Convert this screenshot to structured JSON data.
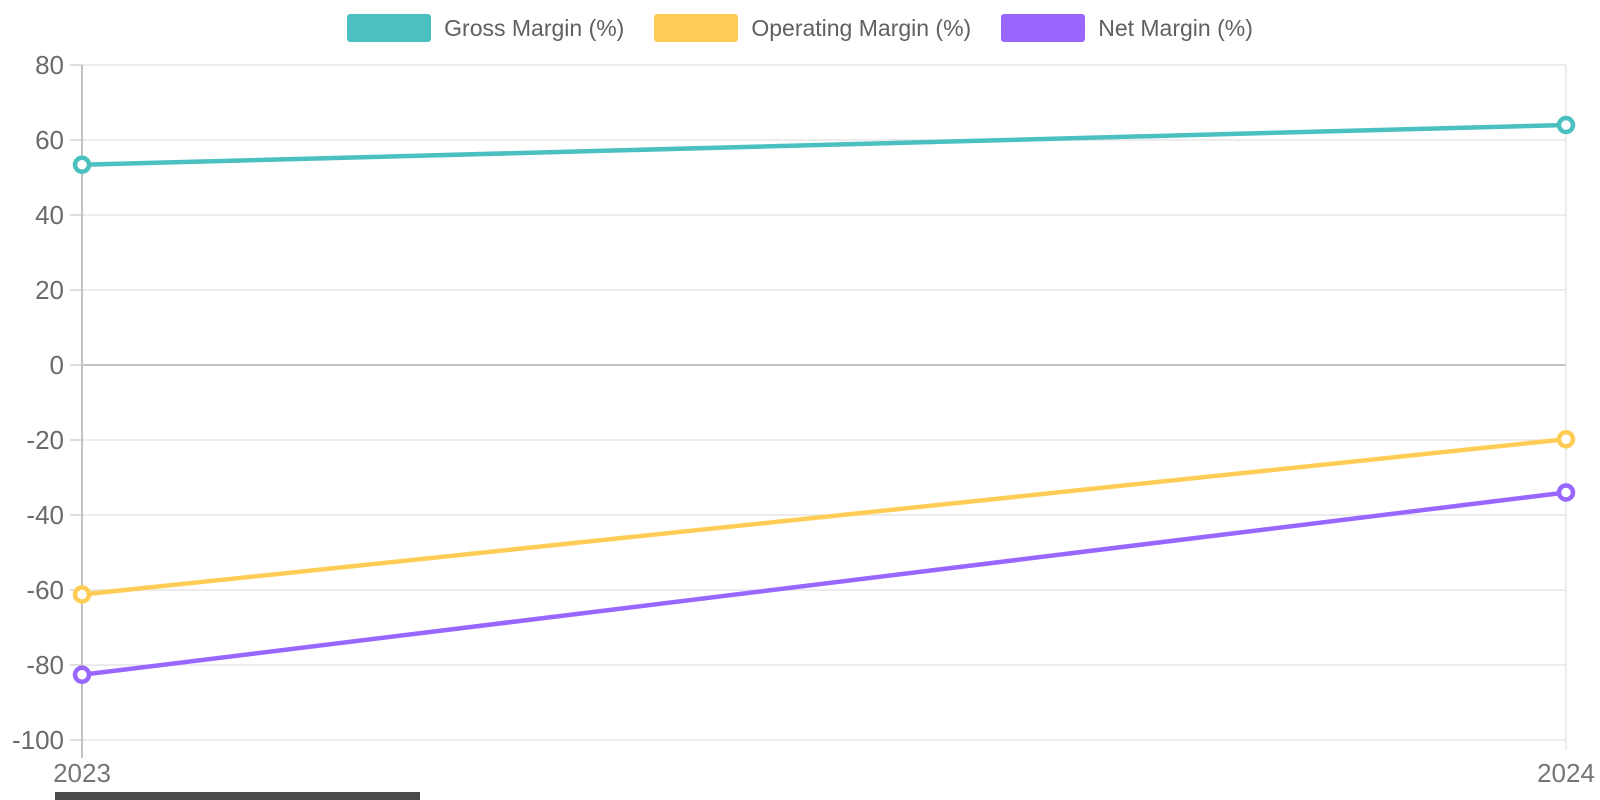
{
  "chart_data": {
    "type": "line",
    "x": [
      "2023",
      "2024"
    ],
    "series": [
      {
        "name": "Gross Margin (%)",
        "color": "#4bc0c0",
        "values": [
          53.4,
          64.0
        ]
      },
      {
        "name": "Operating Margin (%)",
        "color": "#ffcd56",
        "values": [
          -61.2,
          -19.8
        ]
      },
      {
        "name": "Net Margin (%)",
        "color": "#9966ff",
        "values": [
          -82.6,
          -34.0
        ]
      }
    ],
    "ylim": [
      -100,
      80
    ],
    "ytick_step": 20,
    "yticks": [
      80,
      60,
      40,
      20,
      0,
      -20,
      -40,
      -60,
      -80,
      -100
    ],
    "grid": true,
    "legend_position": "top",
    "marker": "open-circle",
    "colors": {
      "grid_line": "#e6e6e6",
      "zero_line": "#c2c2c2",
      "axis_line": "#c2c2c2",
      "tick_mark": "#d2d2d2",
      "y_tick_text": "#6b6b6b",
      "x_tick_text": "#757575",
      "legend_text": "#606060",
      "background": "#ffffff"
    }
  }
}
